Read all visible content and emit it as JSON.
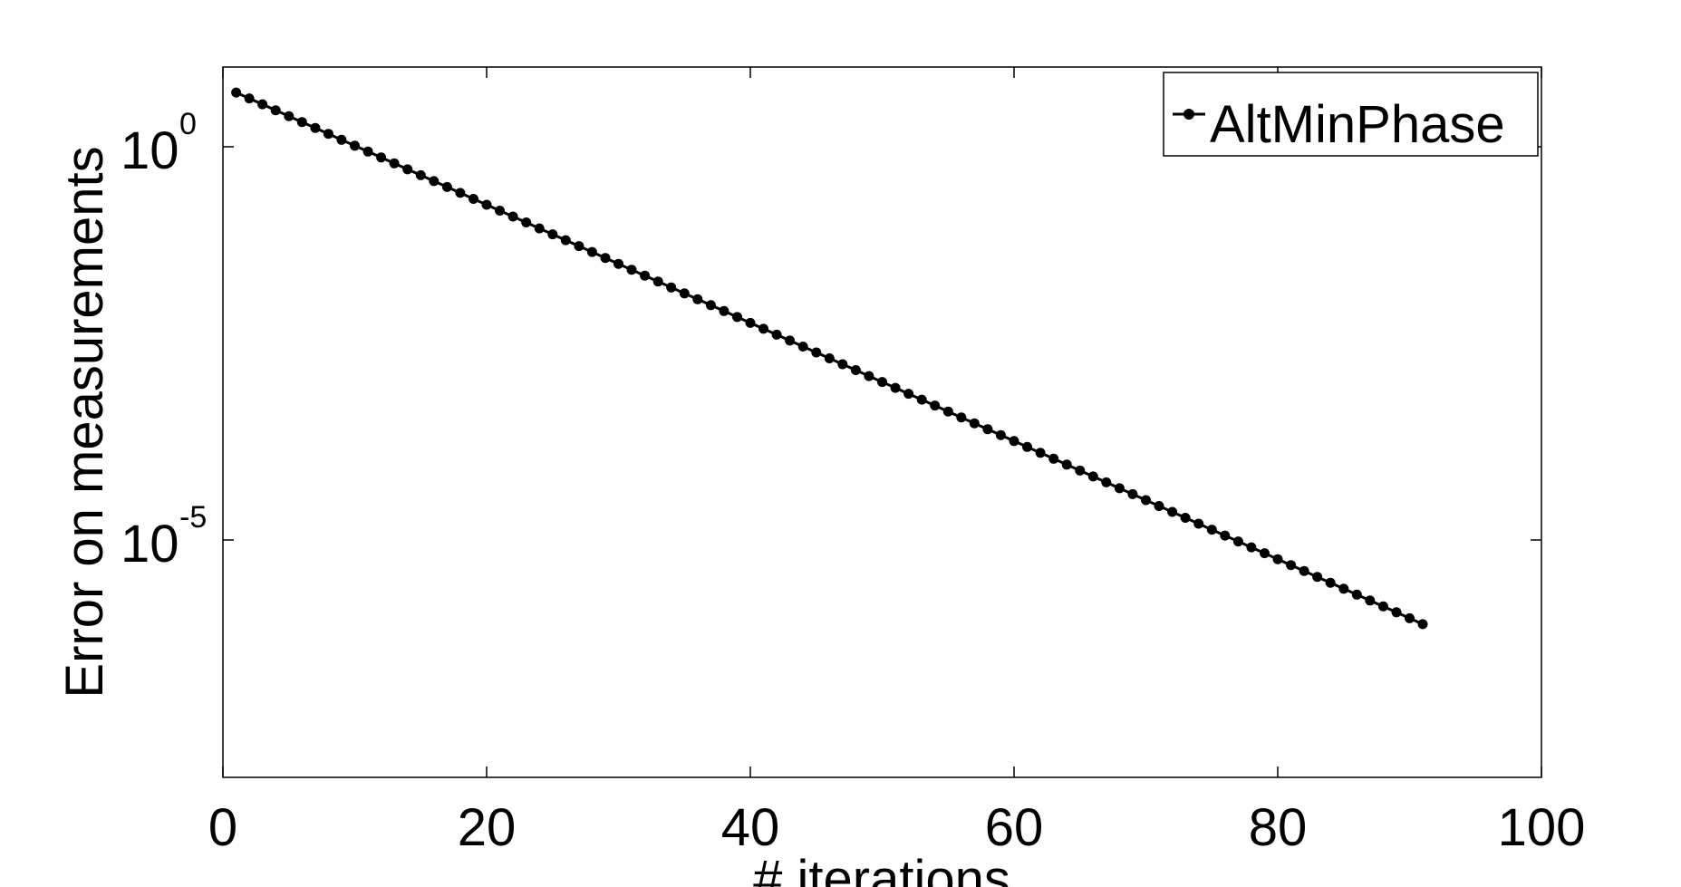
{
  "chart_data": {
    "type": "line",
    "xlabel": "# iterations",
    "ylabel": "Error on measurements",
    "xlim": [
      0,
      100
    ],
    "ylim_log10": [
      -8,
      1
    ],
    "y_scale": "log",
    "x_ticks": [
      0,
      20,
      40,
      60,
      80,
      100
    ],
    "x_tick_labels": [
      "0",
      "20",
      "40",
      "60",
      "80",
      "100"
    ],
    "y_ticks": [
      {
        "log10": 0,
        "base": "10",
        "exponent": "0"
      },
      {
        "log10": -5,
        "base": "10",
        "exponent": "-5"
      }
    ],
    "grid": false,
    "legend_position": "top-right",
    "series": [
      {
        "name": "AltMinPhase",
        "color": "#000000",
        "marker": "dot",
        "x_start": 1,
        "x_end": 91,
        "x_step": 1,
        "log10_y_start": 0.69,
        "log10_y_end": -6.07,
        "description_of_values": "y = 10^(0.69 - 0.0751*(x-1)), x = 1..91"
      }
    ]
  }
}
